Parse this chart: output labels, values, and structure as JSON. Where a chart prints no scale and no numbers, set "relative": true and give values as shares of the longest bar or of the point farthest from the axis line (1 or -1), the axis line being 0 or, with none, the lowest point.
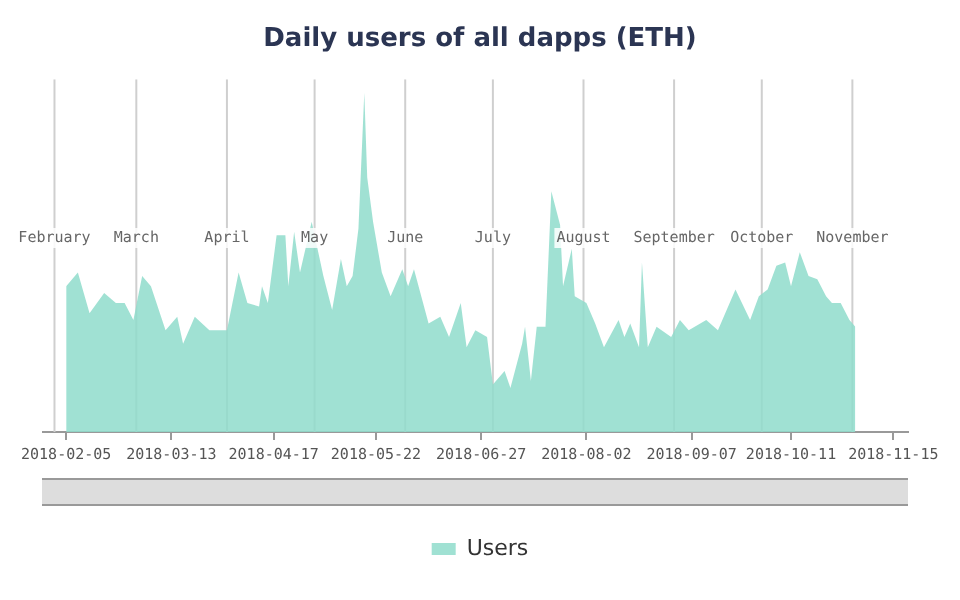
{
  "chart_data": {
    "type": "area",
    "title": "Daily users of all dapps (ETH)",
    "relative": true,
    "legend": "bottom",
    "marker": "none",
    "xlim": [
      "2018-01-28",
      "2018-11-20"
    ],
    "xticks": [
      "2018-02-05",
      "2018-03-13",
      "2018-04-17",
      "2018-05-22",
      "2018-06-27",
      "2018-08-02",
      "2018-09-07",
      "2018-10-11",
      "2018-11-15"
    ],
    "ref_lines": [
      {
        "axis": "x",
        "value": "2018-02-01",
        "label": "February",
        "color": "#cfcfcf"
      },
      {
        "axis": "x",
        "value": "2018-03-01",
        "label": "March",
        "color": "#cfcfcf"
      },
      {
        "axis": "x",
        "value": "2018-04-01",
        "label": "April",
        "color": "#cfcfcf"
      },
      {
        "axis": "x",
        "value": "2018-05-01",
        "label": "May",
        "color": "#cfcfcf"
      },
      {
        "axis": "x",
        "value": "2018-06-01",
        "label": "June",
        "color": "#cfcfcf"
      },
      {
        "axis": "x",
        "value": "2018-07-01",
        "label": "July",
        "color": "#cfcfcf"
      },
      {
        "axis": "x",
        "value": "2018-08-01",
        "label": "August",
        "color": "#cfcfcf"
      },
      {
        "axis": "x",
        "value": "2018-09-01",
        "label": "September",
        "color": "#cfcfcf"
      },
      {
        "axis": "x",
        "value": "2018-10-01",
        "label": "October",
        "color": "#cfcfcf"
      },
      {
        "axis": "x",
        "value": "2018-11-01",
        "label": "November",
        "color": "#cfcfcf"
      }
    ],
    "x": [
      "2018-02-05",
      "2018-02-09",
      "2018-02-13",
      "2018-02-18",
      "2018-02-22",
      "2018-02-25",
      "2018-02-28",
      "2018-03-03",
      "2018-03-06",
      "2018-03-11",
      "2018-03-15",
      "2018-03-17",
      "2018-03-21",
      "2018-03-26",
      "2018-04-01",
      "2018-04-05",
      "2018-04-08",
      "2018-04-12",
      "2018-04-13",
      "2018-04-15",
      "2018-04-18",
      "2018-04-21",
      "2018-04-22",
      "2018-04-24",
      "2018-04-26",
      "2018-04-30",
      "2018-05-04",
      "2018-05-07",
      "2018-05-10",
      "2018-05-12",
      "2018-05-14",
      "2018-05-16",
      "2018-05-18",
      "2018-05-19",
      "2018-05-21",
      "2018-05-24",
      "2018-05-27",
      "2018-05-31",
      "2018-06-02",
      "2018-06-04",
      "2018-06-09",
      "2018-06-13",
      "2018-06-16",
      "2018-06-20",
      "2018-06-22",
      "2018-06-25",
      "2018-06-29",
      "2018-07-01",
      "2018-07-05",
      "2018-07-07",
      "2018-07-11",
      "2018-07-12",
      "2018-07-14",
      "2018-07-16",
      "2018-07-19",
      "2018-07-21",
      "2018-07-24",
      "2018-07-25",
      "2018-07-28",
      "2018-07-29",
      "2018-08-02",
      "2018-08-05",
      "2018-08-08",
      "2018-08-13",
      "2018-08-15",
      "2018-08-17",
      "2018-08-20",
      "2018-08-21",
      "2018-08-23",
      "2018-08-26",
      "2018-08-31",
      "2018-09-03",
      "2018-09-06",
      "2018-09-12",
      "2018-09-16",
      "2018-09-22",
      "2018-09-27",
      "2018-09-30",
      "2018-10-03",
      "2018-10-06",
      "2018-10-09",
      "2018-10-11",
      "2018-10-14",
      "2018-10-17",
      "2018-10-20",
      "2018-10-23",
      "2018-10-25",
      "2018-10-28",
      "2018-10-31",
      "2018-11-02"
    ],
    "series": [
      {
        "name": "Users",
        "color": "#8fdccb",
        "values": [
          0.43,
          0.47,
          0.35,
          0.41,
          0.38,
          0.38,
          0.33,
          0.46,
          0.43,
          0.3,
          0.34,
          0.26,
          0.34,
          0.3,
          0.3,
          0.47,
          0.38,
          0.37,
          0.43,
          0.38,
          0.58,
          0.58,
          0.43,
          0.59,
          0.47,
          0.62,
          0.46,
          0.36,
          0.51,
          0.43,
          0.46,
          0.6,
          1,
          0.75,
          0.62,
          0.47,
          0.4,
          0.48,
          0.43,
          0.48,
          0.32,
          0.34,
          0.28,
          0.38,
          0.25,
          0.3,
          0.28,
          0.14,
          0.18,
          0.13,
          0.26,
          0.31,
          0.15,
          0.31,
          0.31,
          0.71,
          0.61,
          0.43,
          0.54,
          0.4,
          0.38,
          0.32,
          0.25,
          0.33,
          0.28,
          0.32,
          0.25,
          0.5,
          0.25,
          0.31,
          0.28,
          0.33,
          0.3,
          0.33,
          0.3,
          0.42,
          0.33,
          0.4,
          0.42,
          0.49,
          0.5,
          0.43,
          0.53,
          0.46,
          0.45,
          0.4,
          0.38,
          0.38,
          0.33,
          0.31
        ]
      }
    ]
  }
}
